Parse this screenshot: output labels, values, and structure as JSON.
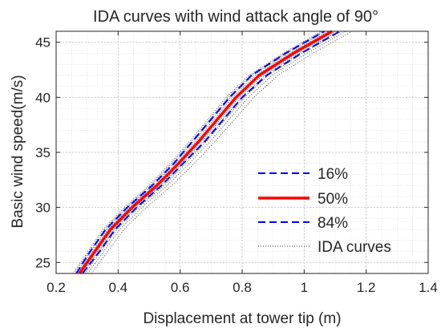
{
  "chart_data": {
    "type": "line",
    "title": "IDA curves with wind attack angle of 90°",
    "xlabel": "Displacement at tower tip (m)",
    "ylabel": "Basic wind speed(m/s)",
    "xlim": [
      0.2,
      1.4
    ],
    "ylim": [
      24,
      46
    ],
    "xticks": [
      0.2,
      0.4,
      0.6,
      0.8,
      1.0,
      1.2,
      1.4
    ],
    "xtick_labels": [
      "0.2",
      "0.4",
      "0.6",
      "0.8",
      "1",
      "1.2",
      "1.4"
    ],
    "yticks": [
      25,
      30,
      35,
      40,
      45
    ],
    "ytick_labels": [
      "25",
      "30",
      "35",
      "40",
      "45"
    ],
    "grid": true,
    "legend_position": "bottom-right",
    "y": [
      24,
      26,
      28,
      30,
      32,
      34,
      36,
      38,
      40,
      42,
      44,
      46
    ],
    "series": [
      {
        "name": "16%",
        "style": "dashed",
        "color": "#0000ff",
        "x": [
          0.265,
          0.31,
          0.36,
          0.43,
          0.51,
          0.58,
          0.64,
          0.7,
          0.76,
          0.83,
          0.94,
          1.065
        ]
      },
      {
        "name": "50%",
        "style": "solid",
        "color": "#ff0000",
        "x": [
          0.275,
          0.325,
          0.375,
          0.445,
          0.525,
          0.595,
          0.66,
          0.72,
          0.78,
          0.855,
          0.965,
          1.09
        ]
      },
      {
        "name": "84%",
        "style": "dashed",
        "color": "#0000ff",
        "x": [
          0.285,
          0.34,
          0.39,
          0.46,
          0.54,
          0.61,
          0.68,
          0.74,
          0.8,
          0.88,
          0.99,
          1.115
        ]
      },
      {
        "name": "IDA curves",
        "style": "dotted",
        "color": "#000000",
        "x_offsets": [
          -0.035,
          -0.028,
          -0.02,
          -0.012,
          -0.005,
          0.005,
          0.012,
          0.02,
          0.03,
          0.045,
          0.065
        ]
      }
    ]
  }
}
